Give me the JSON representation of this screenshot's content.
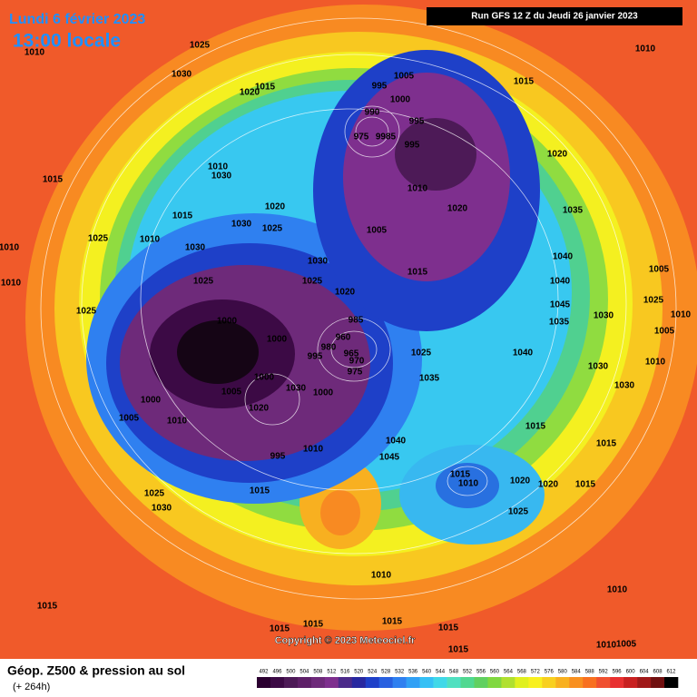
{
  "header": {
    "date": "Lundi 6 février 2023",
    "time": "13:00 locale",
    "run": "Run GFS 12 Z du Jeudi 26 janvier 2023"
  },
  "footer": {
    "title": "Géop. Z500 & pression au sol",
    "lead": "(+ 264h)",
    "copyright": "Copyright © 2023 Meteociel.fr"
  },
  "isobar_labels": [
    1010,
    1025,
    1030,
    1020,
    1015,
    1005,
    995,
    1000,
    990,
    995,
    975,
    9985,
    995,
    1015,
    1010,
    1015,
    1010,
    1030,
    1010,
    1020,
    1020,
    1035,
    1015,
    1030,
    1020,
    1025,
    1005,
    1010,
    1025,
    1010,
    1030,
    1030,
    1040,
    1005,
    1010,
    1025,
    1025,
    1020,
    1015,
    1040,
    1025,
    1045,
    1035,
    1030,
    1010,
    1025,
    1000,
    985,
    960,
    1000,
    980,
    965,
    995,
    970,
    1025,
    1040,
    1005,
    1010,
    975,
    1035,
    1030,
    1000,
    1030,
    1000,
    1005,
    1000,
    1030,
    1020,
    1005,
    1010,
    1015,
    1040,
    1010,
    995,
    1045,
    1015,
    1015,
    1010,
    1020,
    1020,
    1015,
    1015,
    1025,
    1030,
    1025,
    1010,
    1015,
    1010,
    1015,
    1015,
    1015,
    1015,
    1010,
    1005,
    1015
  ],
  "colorbar": {
    "ticks": [
      492,
      496,
      500,
      504,
      508,
      512,
      516,
      520,
      524,
      528,
      532,
      536,
      540,
      544,
      548,
      552,
      556,
      560,
      564,
      568,
      572,
      576,
      580,
      584,
      588,
      592,
      596,
      600,
      604,
      608,
      612
    ],
    "colors": [
      "#2b0030",
      "#3c0a45",
      "#4d1a57",
      "#5e2068",
      "#6e2a7a",
      "#7e2f8e",
      "#4b2a8a",
      "#2828a0",
      "#1e40c8",
      "#2860e0",
      "#2f80f0",
      "#30a0f5",
      "#35c0f5",
      "#40d8e8",
      "#50e0c0",
      "#50d890",
      "#60d060",
      "#80d840",
      "#b0e030",
      "#e0f020",
      "#f8f020",
      "#f8d020",
      "#f8b020",
      "#f89020",
      "#f87020",
      "#f05030",
      "#e83030",
      "#c82020",
      "#a01818",
      "#701010",
      "#000000"
    ]
  }
}
